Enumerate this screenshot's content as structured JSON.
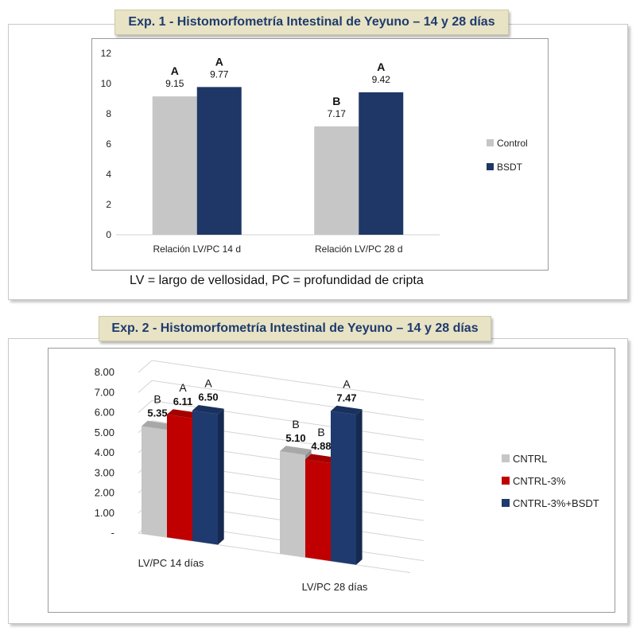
{
  "exp1": {
    "title": "Exp. 1 - Histomorfometría Intestinal de Yeyuno – 14 y 28 días",
    "footnote": "LV = largo de vellosidad, PC = profundidad de cripta"
  },
  "exp2": {
    "title": "Exp. 2 - Histomorfometría Intestinal de Yeyuno – 14 y 28 días"
  },
  "chart_data": [
    {
      "type": "bar",
      "categories": [
        "Relación LV/PC 14 d",
        "Relación LV/PC 28 d"
      ],
      "series": [
        {
          "name": "Control",
          "color": "#c6c6c6",
          "values": [
            9.15,
            7.17
          ],
          "letters": [
            "A",
            "B"
          ],
          "labels": [
            "9.15",
            "7.17"
          ]
        },
        {
          "name": "BSDT",
          "color": "#1e3766",
          "values": [
            9.77,
            9.42
          ],
          "letters": [
            "A",
            "A"
          ],
          "labels": [
            "9.77",
            "9.42"
          ]
        }
      ],
      "yticks": [
        "0",
        "2",
        "4",
        "6",
        "8",
        "10",
        "12"
      ],
      "ylim": [
        0,
        12
      ],
      "grid": false,
      "legend": "right"
    },
    {
      "type": "bar",
      "style": "3d",
      "categories": [
        "LV/PC 14 días",
        "LV/PC 28 días"
      ],
      "series": [
        {
          "name": "CNTRL",
          "color": "#c6c6c6",
          "values": [
            5.35,
            5.1
          ],
          "letters": [
            "B",
            "B"
          ],
          "labels": [
            "5.35",
            "5.10"
          ]
        },
        {
          "name": "CNTRL-3%",
          "color": "#c00000",
          "values": [
            6.11,
            4.88
          ],
          "letters": [
            "A",
            "B"
          ],
          "labels": [
            "6.11",
            "4.88"
          ]
        },
        {
          "name": "CNTRL-3%+BSDT",
          "color": "#1f3a6e",
          "values": [
            6.5,
            7.47
          ],
          "letters": [
            "A",
            "A"
          ],
          "labels": [
            "6.50",
            "7.47"
          ]
        }
      ],
      "yticks": [
        "-",
        "1.00",
        "2.00",
        "3.00",
        "4.00",
        "5.00",
        "6.00",
        "7.00",
        "8.00"
      ],
      "ylim": [
        0,
        8
      ],
      "grid": true,
      "legend": "right"
    }
  ]
}
